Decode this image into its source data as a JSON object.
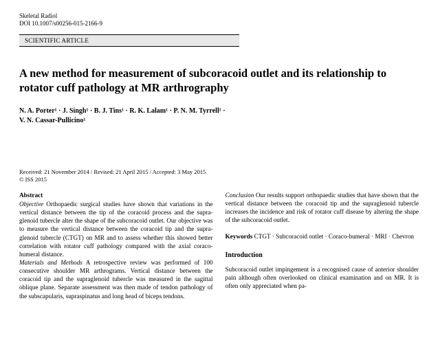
{
  "journal": "Skeletal Radiol",
  "doi": "DOI 10.1007/s00256-015-2166-9",
  "category": "SCIENTIFIC ARTICLE",
  "title": "A new method for measurement of subcoracoid outlet and its relationship to rotator cuff pathology at MR arthrography",
  "authors_line1": "N. A. Porter¹ · J. Singh¹ · B. J. Tins¹ · R. K. Lalam¹ · P. N. M. Tyrrell¹ ·",
  "authors_line2": "V. N. Cassar-Pullicino¹",
  "dates": "Received: 21 November 2014 / Revised: 21 April 2015 / Accepted: 3 May 2015",
  "copyright": "© ISS 2015",
  "abstract_label": "Abstract",
  "objective_label": "Objective",
  "objective_text": " Orthopaedic surgical studies have shown that variations in the vertical distance between the tip of the coracoid process and the supra-glenoid tubercle alter the shape of the subcoracoid outlet. Our objective was to measure the vertical distance between the coracoid tip and the supra-glenoid tubercle (CTGT) on MR and to assess whether this showed better correlation with rotator cuff pathology compared with the axial coraco-humeral distance.",
  "methods_label": "Materials and Methods",
  "methods_text": " A retrospective review was performed of 100 consecutive shoulder MR arthrograms. Vertical distance between the coracoid tip and the supraglenoid tubercle was measured in the sagittal oblique plane. Separate assessment was then made of tendon pathology of the subscapularis, supraspinatus and long head of biceps tendons.",
  "conclusion_label": "Conclusion",
  "conclusion_text": " Our results support orthopaedic studies that have shown that the vertical distance between the coracoid tip and the supraglenoid tubercle increases the incidence and risk of rotator cuff disease by altering the shape of the subcoracoid outlet.",
  "keywords_label": "Keywords",
  "keywords_text": " CTGT · Subcoracoid outlet · Coraco-humeral · MRI · Chevron",
  "intro_head": "Introduction",
  "intro_text": "Subcoracoid outlet impingement is a recognised cause of anterior shoulder pain although often overlooked on clinical examination and on MR. It is often only appreciated when pa-"
}
